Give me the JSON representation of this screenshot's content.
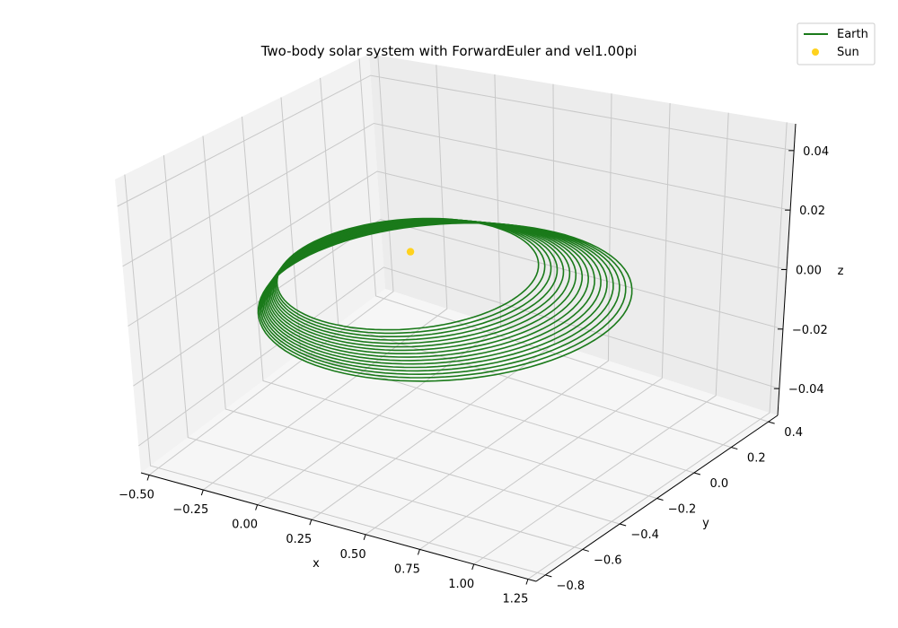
{
  "chart_data": {
    "type": "line",
    "projection": "3d",
    "title": "Two-body solar system with ForwardEuler and vel1.00pi",
    "xlabel": "x",
    "ylabel": "y",
    "zlabel": "z",
    "xlim": [
      -0.5,
      1.25
    ],
    "ylim": [
      -0.8,
      0.4
    ],
    "zlim": [
      -0.05,
      0.05
    ],
    "x_ticks": [
      "−0.50",
      "−0.25",
      "0.00",
      "0.25",
      "0.50",
      "0.75",
      "1.00",
      "1.25"
    ],
    "y_ticks": [
      "−0.8",
      "−0.6",
      "−0.4",
      "−0.2",
      "0.0",
      "0.2",
      "0.4"
    ],
    "z_ticks": [
      "−0.04",
      "−0.02",
      "0.00",
      "0.02",
      "0.04"
    ],
    "grid": true,
    "legend_position": "top-right",
    "series": [
      {
        "name": "Earth",
        "kind": "line",
        "color": "#1a7a1a",
        "orbit_loops": 16,
        "first_orbit": {
          "x_range": [
            -0.35,
            0.55
          ],
          "y_range": [
            -0.5,
            0.25
          ]
        },
        "last_orbit": {
          "x_range": [
            -0.3,
            1.0
          ],
          "y_range": [
            -0.75,
            0.3
          ]
        },
        "z": 0.0
      },
      {
        "name": "Sun",
        "kind": "scatter",
        "color": "#ffd21e",
        "x": 0.0,
        "y": 0.0,
        "z": 0.0
      }
    ]
  }
}
